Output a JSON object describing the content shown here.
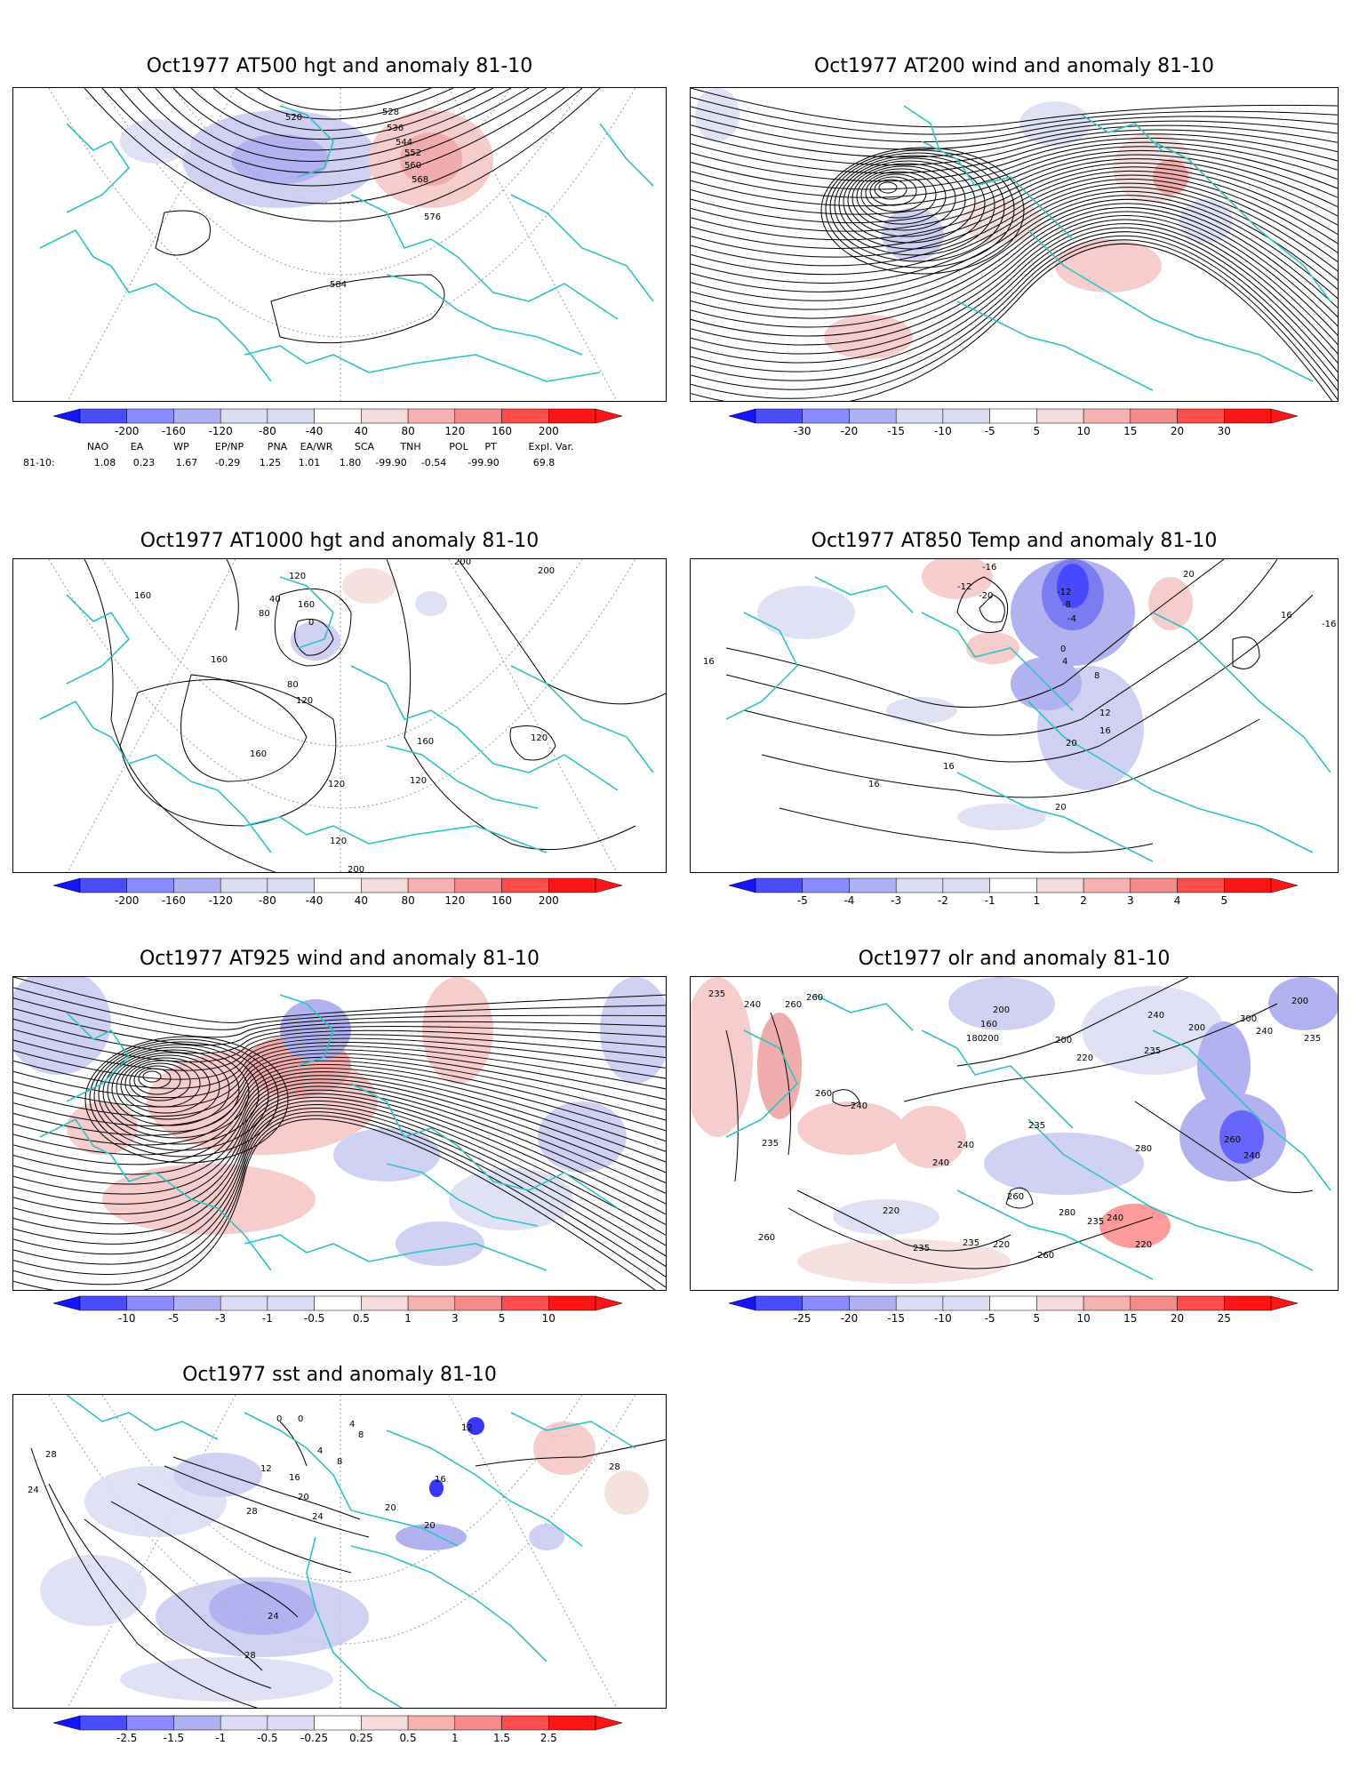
{
  "panels": [
    {
      "key": "p1",
      "title": "Oct1977 AT500 hgt and anomaly 81-10",
      "contour_labels": [
        "520",
        "528",
        "536",
        "544",
        "552",
        "560",
        "568",
        "576",
        "584"
      ],
      "colorbar_ticks": [
        "-200",
        "-160",
        "-120",
        "-80",
        "-40",
        "40",
        "80",
        "120",
        "160",
        "200"
      ]
    },
    {
      "key": "p2",
      "title": "Oct1977 AT200 wind and anomaly 81-10",
      "contour_labels": [],
      "colorbar_ticks": [
        "-30",
        "-20",
        "-15",
        "-10",
        "-5",
        "5",
        "10",
        "15",
        "20",
        "30"
      ]
    },
    {
      "key": "p3",
      "title": "Oct1977 AT1000 hgt and anomaly 81-10",
      "contour_labels": [
        "160",
        "120",
        "40",
        "80",
        "160",
        "0",
        "200",
        "200",
        "160",
        "80",
        "120",
        "160",
        "120",
        "120",
        "120",
        "160",
        "120",
        "200"
      ],
      "colorbar_ticks": [
        "-200",
        "-160",
        "-120",
        "-80",
        "-40",
        "40",
        "80",
        "120",
        "160",
        "200"
      ]
    },
    {
      "key": "p4",
      "title": "Oct1977 AT850 Temp and anomaly 81-10",
      "contour_labels": [
        "-16",
        "-12",
        "-20",
        "-12",
        "-8",
        "-4",
        "0",
        "4",
        "8",
        "12",
        "16",
        "20",
        "16",
        "16",
        "20",
        "16",
        "16",
        "20",
        "-16"
      ],
      "colorbar_ticks": [
        "-5",
        "-4",
        "-3",
        "-2",
        "-1",
        "1",
        "2",
        "3",
        "4",
        "5"
      ]
    },
    {
      "key": "p5",
      "title": "Oct1977 AT925 wind and anomaly 81-10",
      "contour_labels": [],
      "colorbar_ticks": [
        "-10",
        "-5",
        "-3",
        "-1",
        "-0.5",
        "0.5",
        "1",
        "3",
        "5",
        "10"
      ]
    },
    {
      "key": "p6",
      "title": "Oct1977 olr and anomaly 81-10",
      "contour_labels": [
        "235",
        "240",
        "260",
        "260",
        "200",
        "160",
        "180",
        "200",
        "200",
        "220",
        "235",
        "240",
        "300",
        "200",
        "240",
        "235",
        "240",
        "260",
        "235",
        "240",
        "280",
        "235",
        "260",
        "240",
        "260",
        "220",
        "235",
        "235",
        "220",
        "260",
        "240",
        "235",
        "240",
        "220",
        "260",
        "280",
        "200"
      ],
      "colorbar_ticks": [
        "-25",
        "-20",
        "-15",
        "-10",
        "-5",
        "5",
        "10",
        "15",
        "20",
        "25"
      ]
    },
    {
      "key": "p7",
      "title": "Oct1977 sst and anomaly 81-10",
      "contour_labels": [
        "0",
        "0",
        "4",
        "8",
        "4",
        "8",
        "12",
        "16",
        "20",
        "24",
        "28",
        "28",
        "24",
        "28",
        "20",
        "16",
        "12",
        "20",
        "24",
        "28"
      ],
      "colorbar_ticks": [
        "-2.5",
        "-1.5",
        "-1",
        "-0.5",
        "-0.25",
        "0.25",
        "0.5",
        "1",
        "1.5",
        "2.5"
      ]
    }
  ],
  "indices": {
    "headers": [
      "NAO",
      "EA",
      "WP",
      "EP/NP",
      "PNA",
      "EA/WR",
      "SCA",
      "TNH",
      "POL",
      "PT",
      "Expl. Var."
    ],
    "row_label": "81-10:",
    "values": [
      "1.08",
      "0.23",
      "1.67",
      "-0.29",
      "1.25",
      "1.01",
      "1.80",
      "-99.90",
      "-0.54",
      "-99.90",
      "69.8"
    ]
  },
  "colors": {
    "coastline": "#2bc4c4",
    "neg": [
      "#1515ff",
      "#4c4cff",
      "#8a8aff",
      "#b0b0f5",
      "#dcdcf5"
    ],
    "pos": [
      "#f5dcdc",
      "#f5b0b0",
      "#f58a8a",
      "#ff4c4c",
      "#ff1515"
    ],
    "contour": "#000000"
  }
}
